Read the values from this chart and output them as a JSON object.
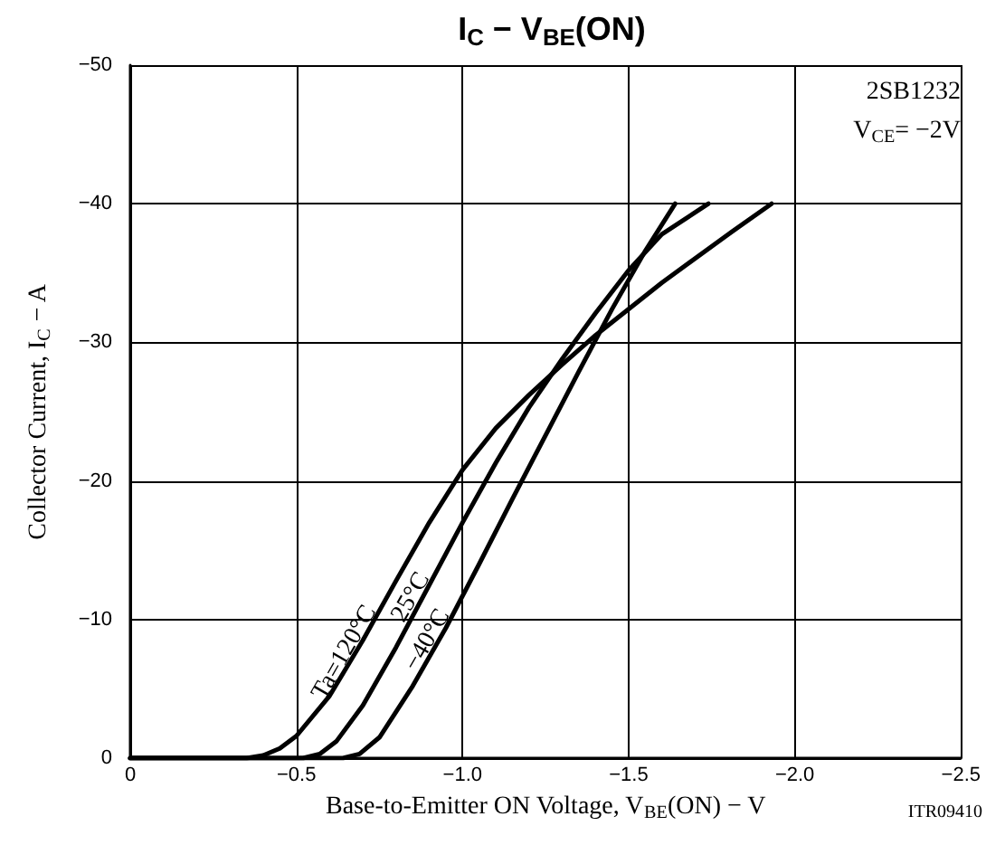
{
  "chart_data": {
    "type": "line",
    "title": "I$_{C}$ − V$_{BE}$(ON)",
    "xlabel": "Base-to-Emitter ON Voltage, V$_{BE}$(ON) − V",
    "ylabel": "Collector Current, I$_{C}$ − A",
    "annotations": [
      "2SB1232",
      "V$_{CE}$= −2V",
      "ITR09410"
    ],
    "xlim": [
      0,
      -2.5
    ],
    "xticks": [
      0,
      {
        "value": -0.5,
        "label": "−0.5"
      },
      {
        "value": -1.0,
        "label": "−1.0"
      },
      {
        "value": -1.5,
        "label": "−1.5"
      },
      {
        "value": -2.0,
        "label": "−2.0"
      },
      {
        "value": -2.5,
        "label": "−2.5"
      }
    ],
    "ylim": [
      0,
      -50
    ],
    "yticks": [
      0,
      {
        "value": -10,
        "label": "−10"
      },
      {
        "value": -20,
        "label": "−20"
      },
      {
        "value": -30,
        "label": "−30"
      },
      {
        "value": -40,
        "label": "−40"
      },
      {
        "value": -50,
        "label": "−50"
      }
    ],
    "grid": true,
    "marker": "none",
    "line_style": "solid",
    "series": [
      {
        "name": "Ta=120°C",
        "color": "#000000",
        "x": [
          0,
          -0.35,
          -0.4,
          -0.45,
          -0.5,
          -0.6,
          -0.7,
          -0.8,
          -0.9,
          -1.0,
          -1.1,
          -1.2,
          -1.3,
          -1.4,
          -1.6,
          -1.8,
          -1.93
        ],
        "values": [
          0,
          0,
          -0.2,
          -0.7,
          -1.6,
          -4.5,
          -8.5,
          -12.8,
          -17,
          -20.8,
          -23.8,
          -26.2,
          -28.4,
          -30.5,
          -34.3,
          -37.8,
          -40
        ]
      },
      {
        "name": "25°C",
        "color": "#000000",
        "x": [
          0,
          -0.52,
          -0.57,
          -0.62,
          -0.7,
          -0.8,
          -0.9,
          -1.0,
          -1.1,
          -1.2,
          -1.3,
          -1.4,
          -1.5,
          -1.6,
          -1.74
        ],
        "values": [
          0,
          0,
          -0.3,
          -1.2,
          -3.8,
          -8,
          -12.5,
          -17,
          -21.3,
          -25.3,
          -28.8,
          -32.1,
          -35.2,
          -37.8,
          -40
        ]
      },
      {
        "name": "−40°C",
        "color": "#000000",
        "x": [
          0,
          -0.64,
          -0.69,
          -0.75,
          -0.85,
          -0.95,
          -1.05,
          -1.15,
          -1.25,
          -1.35,
          -1.45,
          -1.55,
          -1.64
        ],
        "values": [
          0,
          0,
          -0.3,
          -1.5,
          -5.2,
          -9.4,
          -14,
          -18.7,
          -23.3,
          -27.9,
          -32.4,
          -36.6,
          -40
        ]
      }
    ]
  }
}
